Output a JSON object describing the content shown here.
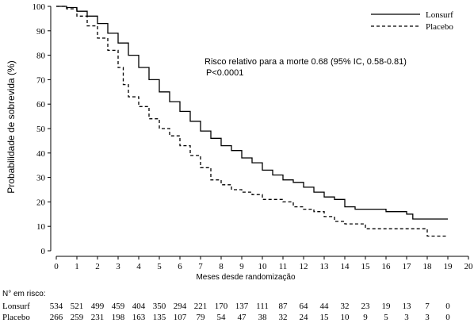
{
  "chart_data": {
    "type": "line",
    "title": "",
    "xlabel": "Meses desde randomização",
    "ylabel": "Probabilidade de sobrevida (%)",
    "xlim": [
      0,
      20
    ],
    "ylim": [
      0,
      100
    ],
    "x_ticks": [
      "0",
      "1",
      "2",
      "3",
      "4",
      "5",
      "6",
      "7",
      "8",
      "9",
      "10",
      "11",
      "12",
      "13",
      "14",
      "15",
      "16",
      "17",
      "18",
      "19",
      "20"
    ],
    "y_ticks": [
      "0",
      "10",
      "20",
      "30",
      "40",
      "50",
      "60",
      "70",
      "80",
      "90",
      "100"
    ],
    "grid": false,
    "legend_position": "top-right",
    "annotation": [
      "Risco relativo para a morte 0.68 (95% IC, 0.58-0.81)",
      "P<0.0001"
    ],
    "series": [
      {
        "name": "Lonsurf",
        "style": "solid",
        "color": "#000000",
        "points": [
          [
            0,
            100
          ],
          [
            0.5,
            99.5
          ],
          [
            1,
            98
          ],
          [
            1.5,
            96
          ],
          [
            2,
            93
          ],
          [
            2.5,
            89
          ],
          [
            3,
            85
          ],
          [
            3.5,
            80
          ],
          [
            4,
            75
          ],
          [
            4.5,
            70
          ],
          [
            5,
            65
          ],
          [
            5.5,
            61
          ],
          [
            6,
            57
          ],
          [
            6.5,
            53
          ],
          [
            7,
            49
          ],
          [
            7.5,
            46
          ],
          [
            8,
            43
          ],
          [
            8.5,
            41
          ],
          [
            9,
            38
          ],
          [
            9.5,
            36
          ],
          [
            10,
            33
          ],
          [
            10.5,
            31
          ],
          [
            11,
            29
          ],
          [
            11.5,
            28
          ],
          [
            12,
            26
          ],
          [
            12.5,
            24
          ],
          [
            13,
            22
          ],
          [
            13.5,
            21
          ],
          [
            14,
            18
          ],
          [
            14.5,
            17
          ],
          [
            15,
            17
          ],
          [
            16,
            16
          ],
          [
            17,
            15
          ],
          [
            17.3,
            13
          ],
          [
            17.5,
            13
          ],
          [
            18,
            13
          ],
          [
            19,
            13
          ]
        ]
      },
      {
        "name": "Placebo",
        "style": "dashed",
        "color": "#000000",
        "points": [
          [
            0,
            100
          ],
          [
            0.5,
            99
          ],
          [
            1,
            96
          ],
          [
            1.5,
            92
          ],
          [
            2,
            87
          ],
          [
            2.5,
            82
          ],
          [
            3,
            75
          ],
          [
            3.25,
            68
          ],
          [
            3.5,
            63
          ],
          [
            4,
            59
          ],
          [
            4.5,
            54
          ],
          [
            5,
            50
          ],
          [
            5.5,
            47
          ],
          [
            6,
            43
          ],
          [
            6.5,
            39
          ],
          [
            7,
            34
          ],
          [
            7.5,
            29
          ],
          [
            8,
            27
          ],
          [
            8.5,
            25
          ],
          [
            9,
            24
          ],
          [
            9.5,
            23
          ],
          [
            10,
            21
          ],
          [
            10.5,
            21
          ],
          [
            11,
            20
          ],
          [
            11.5,
            18
          ],
          [
            12,
            17
          ],
          [
            12.5,
            16
          ],
          [
            13,
            14
          ],
          [
            13.5,
            12
          ],
          [
            14,
            11
          ],
          [
            14.5,
            11
          ],
          [
            15,
            9
          ],
          [
            16,
            9
          ],
          [
            17,
            9
          ],
          [
            17.5,
            9
          ],
          [
            18,
            6
          ],
          [
            18.5,
            6
          ],
          [
            19,
            6
          ]
        ]
      }
    ],
    "risk_table": {
      "title": "N° em risco:",
      "rows": [
        {
          "label": "Lonsurf",
          "values": [
            "534",
            "521",
            "499",
            "459",
            "404",
            "350",
            "294",
            "221",
            "170",
            "137",
            "111",
            "87",
            "64",
            "44",
            "32",
            "23",
            "19",
            "13",
            "7",
            "0"
          ]
        },
        {
          "label": "Placebo",
          "values": [
            "266",
            "259",
            "231",
            "198",
            "163",
            "135",
            "107",
            "79",
            "54",
            "47",
            "38",
            "32",
            "24",
            "15",
            "10",
            "9",
            "5",
            "3",
            "3",
            "0"
          ]
        }
      ]
    }
  }
}
